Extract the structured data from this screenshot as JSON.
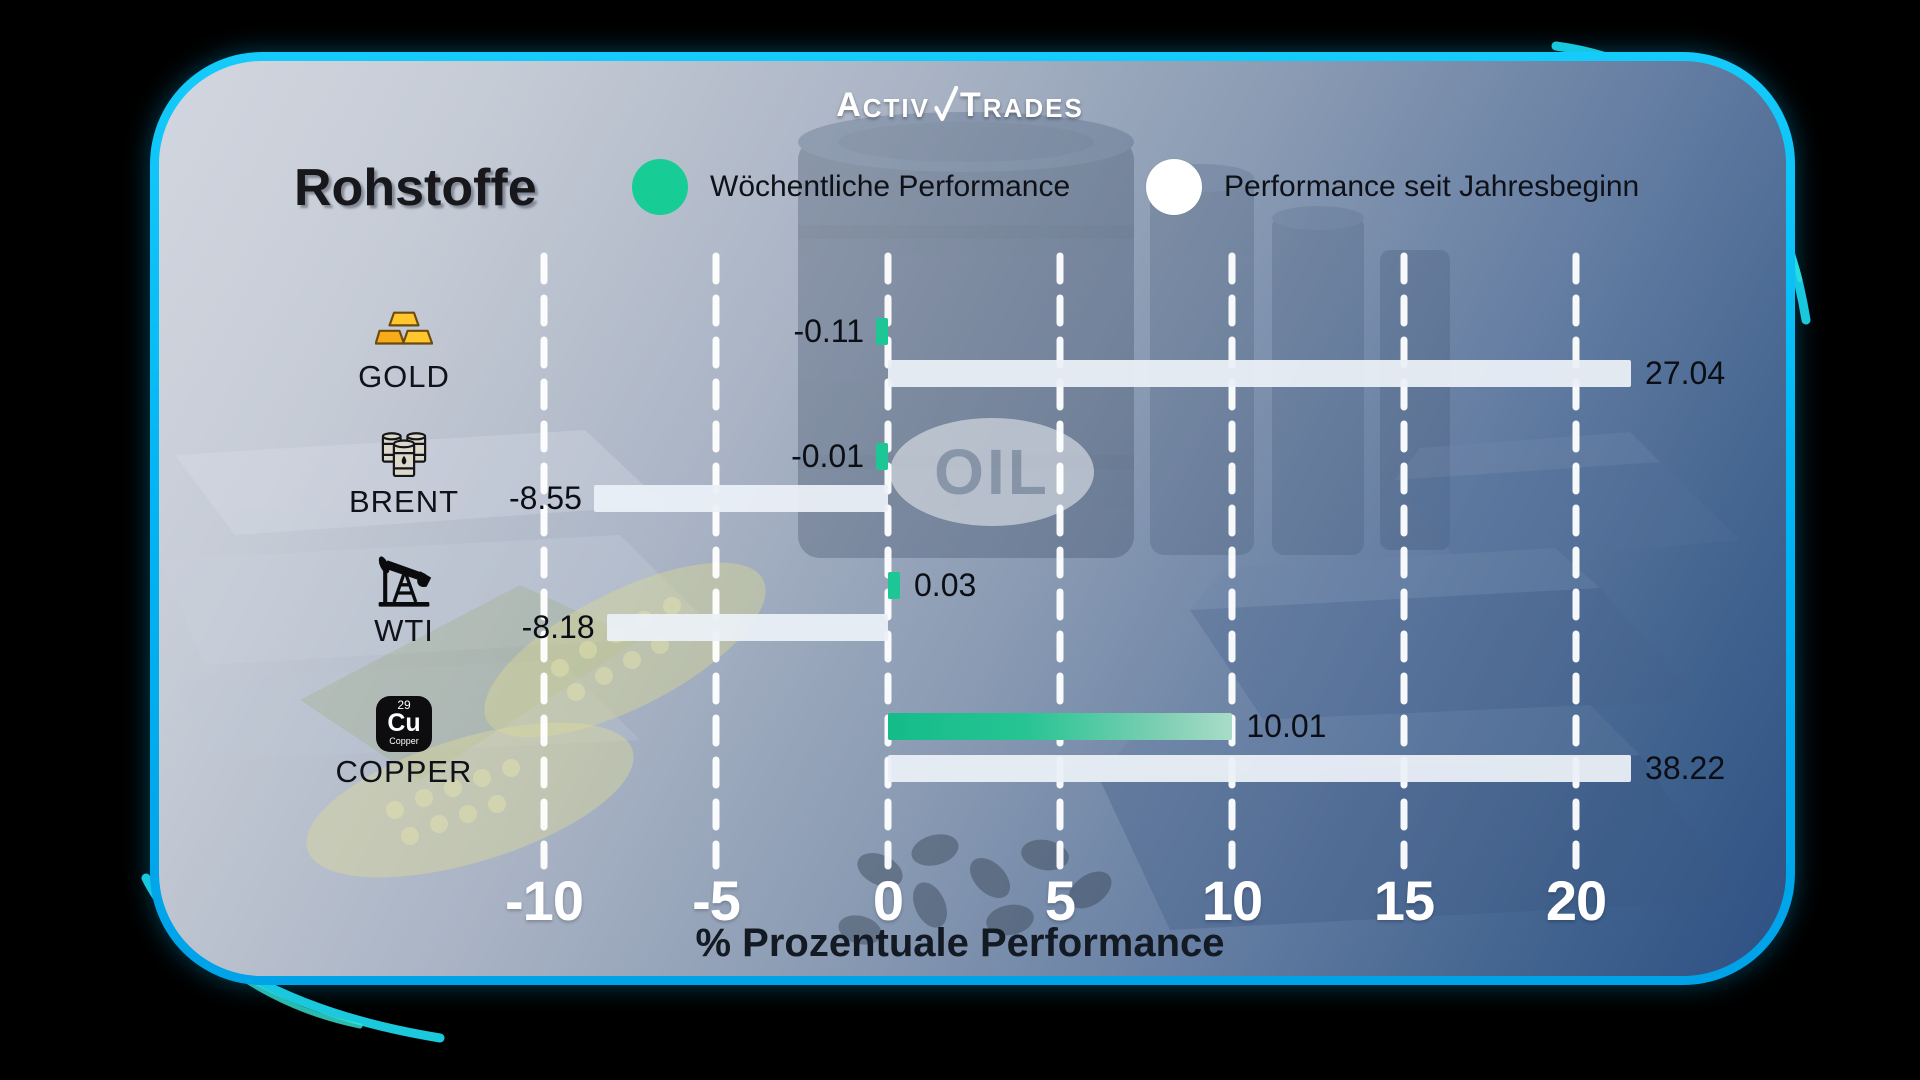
{
  "brand": {
    "logo_part1": "Activ",
    "logo_part2": "Trades",
    "logo_icon": "check-slash-icon"
  },
  "header": {
    "title": "Rohstoffe"
  },
  "legend": [
    {
      "key": "weekly",
      "label": "Wöchentliche Performance",
      "color": "#17cd95"
    },
    {
      "key": "ytd",
      "label": "Performance seit Jahresbeginn",
      "color": "#ffffff"
    }
  ],
  "background": {
    "oil_label": "OIL"
  },
  "chart_data": {
    "type": "bar",
    "orientation": "horizontal",
    "title": "Rohstoffe",
    "categories": [
      "GOLD",
      "BRENT",
      "WTI",
      "COPPER"
    ],
    "icons": [
      "gold-bars",
      "oil-barrels",
      "oil-pump",
      "copper-element"
    ],
    "series": [
      {
        "name": "Wöchentliche Performance",
        "color": "#1dc795",
        "values": [
          -0.11,
          -0.01,
          0.03,
          10.01
        ]
      },
      {
        "name": "Performance seit Jahresbeginn",
        "color": "#ebf0f7",
        "values": [
          27.04,
          -8.55,
          -8.18,
          38.22
        ]
      }
    ],
    "value_labels": [
      "-0.11",
      "-0.01",
      "0.03",
      "10.01",
      "27.04",
      "-8.55",
      "-8.18",
      "38.22"
    ],
    "xlabel": "% Prozentuale Performance",
    "x_ticks": [
      -10,
      -5,
      0,
      5,
      10,
      15,
      20
    ],
    "xlim": [
      -12.5,
      22.5
    ],
    "grid": "dashed-white-vertical",
    "legend_position": "top"
  }
}
